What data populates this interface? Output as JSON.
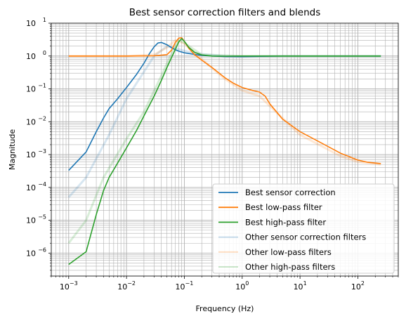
{
  "chart_data": {
    "type": "line",
    "title": "Best sensor correction filters and blends",
    "xlabel": "Frequency (Hz)",
    "ylabel": "Magnitude",
    "xscale": "log",
    "yscale": "log",
    "xlim": [
      0.0005,
      500
    ],
    "ylim": [
      2e-07,
      10
    ],
    "grid": "major and minor",
    "legend_position": "lower-right",
    "x_ticks": [
      {
        "value": 0.001,
        "base": "10",
        "exp": "−3"
      },
      {
        "value": 0.01,
        "base": "10",
        "exp": "−2"
      },
      {
        "value": 0.1,
        "base": "10",
        "exp": "−1"
      },
      {
        "value": 1,
        "base": "10",
        "exp": "0"
      },
      {
        "value": 10,
        "base": "10",
        "exp": "1"
      },
      {
        "value": 100,
        "base": "10",
        "exp": "2"
      }
    ],
    "y_ticks": [
      {
        "value": 1e-06,
        "base": "10",
        "exp": "−6"
      },
      {
        "value": 1e-05,
        "base": "10",
        "exp": "−5"
      },
      {
        "value": 0.0001,
        "base": "10",
        "exp": "−4"
      },
      {
        "value": 0.001,
        "base": "10",
        "exp": "−3"
      },
      {
        "value": 0.01,
        "base": "10",
        "exp": "−2"
      },
      {
        "value": 0.1,
        "base": "10",
        "exp": "−1"
      },
      {
        "value": 1,
        "base": "10",
        "exp": "0"
      },
      {
        "value": 10,
        "base": "10",
        "exp": "1"
      }
    ],
    "series": [
      {
        "name": "Best sensor correction",
        "color": "#1f77b4",
        "x": [
          0.001,
          0.002,
          0.003,
          0.004,
          0.005,
          0.007,
          0.01,
          0.015,
          0.02,
          0.025,
          0.03,
          0.035,
          0.04,
          0.05,
          0.06,
          0.07,
          0.08,
          0.1,
          0.15,
          0.2,
          0.3,
          0.5,
          1,
          2,
          5,
          10,
          50,
          100,
          250
        ],
        "y": [
          0.00033,
          0.0012,
          0.005,
          0.013,
          0.025,
          0.05,
          0.11,
          0.28,
          0.6,
          1.2,
          1.9,
          2.5,
          2.6,
          2.2,
          1.8,
          1.55,
          1.4,
          1.25,
          1.12,
          1.05,
          1.0,
          0.97,
          0.96,
          0.98,
          1.0,
          1.0,
          1.0,
          1.0,
          1.0
        ]
      },
      {
        "name": "Best low-pass filter",
        "color": "#ff7f0e",
        "x": [
          0.001,
          0.01,
          0.03,
          0.05,
          0.06,
          0.07,
          0.08,
          0.09,
          0.1,
          0.12,
          0.15,
          0.2,
          0.3,
          0.5,
          0.7,
          1,
          1.5,
          2,
          2.5,
          3,
          5,
          10,
          20,
          50,
          100,
          150,
          250
        ],
        "y": [
          1.0,
          1.0,
          1.02,
          1.1,
          1.5,
          2.6,
          3.5,
          3.6,
          2.8,
          1.7,
          1.1,
          0.75,
          0.45,
          0.22,
          0.15,
          0.11,
          0.09,
          0.08,
          0.06,
          0.035,
          0.012,
          0.005,
          0.0026,
          0.0011,
          0.00068,
          0.00058,
          0.00053
        ]
      },
      {
        "name": "Best high-pass filter",
        "color": "#2ca02c",
        "x": [
          0.001,
          0.002,
          0.003,
          0.004,
          0.005,
          0.007,
          0.01,
          0.015,
          0.02,
          0.03,
          0.04,
          0.05,
          0.06,
          0.07,
          0.08,
          0.09,
          0.1,
          0.12,
          0.15,
          0.2,
          0.3,
          0.5,
          1,
          10,
          100,
          250
        ],
        "y": [
          4.5e-07,
          1.1e-06,
          1.5e-05,
          8e-05,
          0.0002,
          0.00055,
          0.0016,
          0.0055,
          0.015,
          0.06,
          0.18,
          0.45,
          0.9,
          1.6,
          2.7,
          3.4,
          2.8,
          1.8,
          1.3,
          1.08,
          1.0,
          0.99,
          1.0,
          1.0,
          1.0,
          1.0
        ]
      },
      {
        "name": "Other sensor correction filters",
        "color": "#1f77b4",
        "faded": true,
        "x": [
          0.001,
          0.002,
          0.005,
          0.01,
          0.03,
          0.05,
          0.08,
          0.15,
          0.5,
          1,
          5,
          100,
          250
        ],
        "y": [
          5e-05,
          0.0002,
          0.004,
          0.05,
          1.0,
          2.0,
          1.6,
          1.2,
          1.0,
          0.98,
          1.0,
          1.0,
          1.0
        ]
      },
      {
        "name": "Other low-pass filters",
        "color": "#ff7f0e",
        "faded": true,
        "x": [
          0.001,
          0.01,
          0.03,
          0.05,
          0.07,
          0.1,
          0.2,
          0.5,
          1,
          2,
          3,
          10,
          50,
          100,
          250
        ],
        "y": [
          1.0,
          1.0,
          1.1,
          1.8,
          3.0,
          2.4,
          0.8,
          0.2,
          0.09,
          0.06,
          0.03,
          0.004,
          0.0009,
          0.0006,
          0.0005
        ]
      },
      {
        "name": "Other high-pass filters",
        "color": "#2ca02c",
        "faded": true,
        "x": [
          0.001,
          0.002,
          0.004,
          0.01,
          0.02,
          0.04,
          0.06,
          0.08,
          0.1,
          0.2,
          1,
          100,
          250
        ],
        "y": [
          2e-06,
          1e-05,
          0.0002,
          0.003,
          0.02,
          0.25,
          1.2,
          3.0,
          2.5,
          1.1,
          1.0,
          1.0,
          1.0
        ]
      }
    ]
  }
}
